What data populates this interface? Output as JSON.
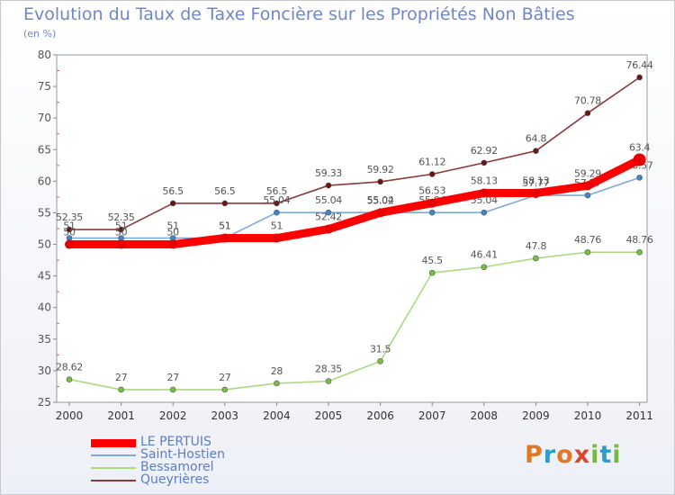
{
  "title": "Evolution du Taux de Taxe Foncière sur les Propriétés Non Bâties",
  "subtitle": "(en %)",
  "brand": "Proxiti",
  "brand_colors": [
    "#e07826",
    "#2f9ccf",
    "#e07826",
    "#d9482a",
    "#7ab846",
    "#2f9ccf",
    "#7ab846"
  ],
  "chart_data": {
    "type": "line",
    "title": "Evolution du Taux de Taxe Foncière sur les Propriétés Non Bâties",
    "ylabel": "(en %)",
    "xlabel": "",
    "ylim": [
      25,
      80
    ],
    "yticks": [
      25,
      30,
      35,
      40,
      45,
      50,
      55,
      60,
      65,
      70,
      75,
      80
    ],
    "categories": [
      "2000",
      "2001",
      "2002",
      "2003",
      "2004",
      "2005",
      "2006",
      "2007",
      "2008",
      "2009",
      "2010",
      "2011"
    ],
    "grid": false,
    "series": [
      {
        "name": "Queyrières",
        "color": "#8b3a3a",
        "dot": "#6b1414",
        "values": [
          52.35,
          52.35,
          56.5,
          56.5,
          56.5,
          59.33,
          59.92,
          61.12,
          62.92,
          64.8,
          70.78,
          76.44
        ],
        "labels": [
          "52.35",
          "52.35",
          "56.5",
          "56.5",
          "56.5",
          "59.33",
          "59.92",
          "61.12",
          "62.92",
          "64.8",
          "70.78",
          "76.44"
        ]
      },
      {
        "name": "Saint-Hostien",
        "color": "#7fa9d6",
        "dot": "#3f86c9",
        "values": [
          51,
          51,
          51,
          51,
          55.04,
          55.04,
          55.04,
          55.04,
          55.04,
          57.77,
          57.77,
          60.57
        ],
        "labels": [
          "51",
          "51",
          "51",
          "51",
          "55.04",
          "55.04",
          "55.04",
          "55.04",
          "55.04",
          "57.77",
          "57.77",
          "60.57"
        ]
      },
      {
        "name": "Bessamorel",
        "color": "#a9db7e",
        "dot": "#76c043",
        "values": [
          28.62,
          27,
          27,
          27,
          28,
          28.35,
          31.5,
          45.5,
          46.41,
          47.8,
          48.76,
          48.76
        ],
        "labels": [
          "28.62",
          "27",
          "27",
          "27",
          "28",
          "28.35",
          "31.5",
          "45.5",
          "46.41",
          "47.8",
          "48.76",
          "48.76"
        ]
      },
      {
        "name": "LE PERTUIS",
        "color": "#ff0000",
        "dot": "#e60000",
        "bold": true,
        "values": [
          50,
          50,
          50,
          51,
          51,
          52.42,
          55.02,
          56.53,
          58.13,
          58.13,
          59.29,
          63.4
        ],
        "labels": [
          "50",
          "50",
          "50",
          "51",
          "51",
          "52.42",
          "55.02",
          "56.53",
          "58.13",
          "58.13",
          "59.29",
          "63.4"
        ]
      }
    ],
    "legend": [
      "LE PERTUIS",
      "Saint-Hostien",
      "Bessamorel",
      "Queyrières"
    ],
    "legend_position": "bottom-left"
  }
}
